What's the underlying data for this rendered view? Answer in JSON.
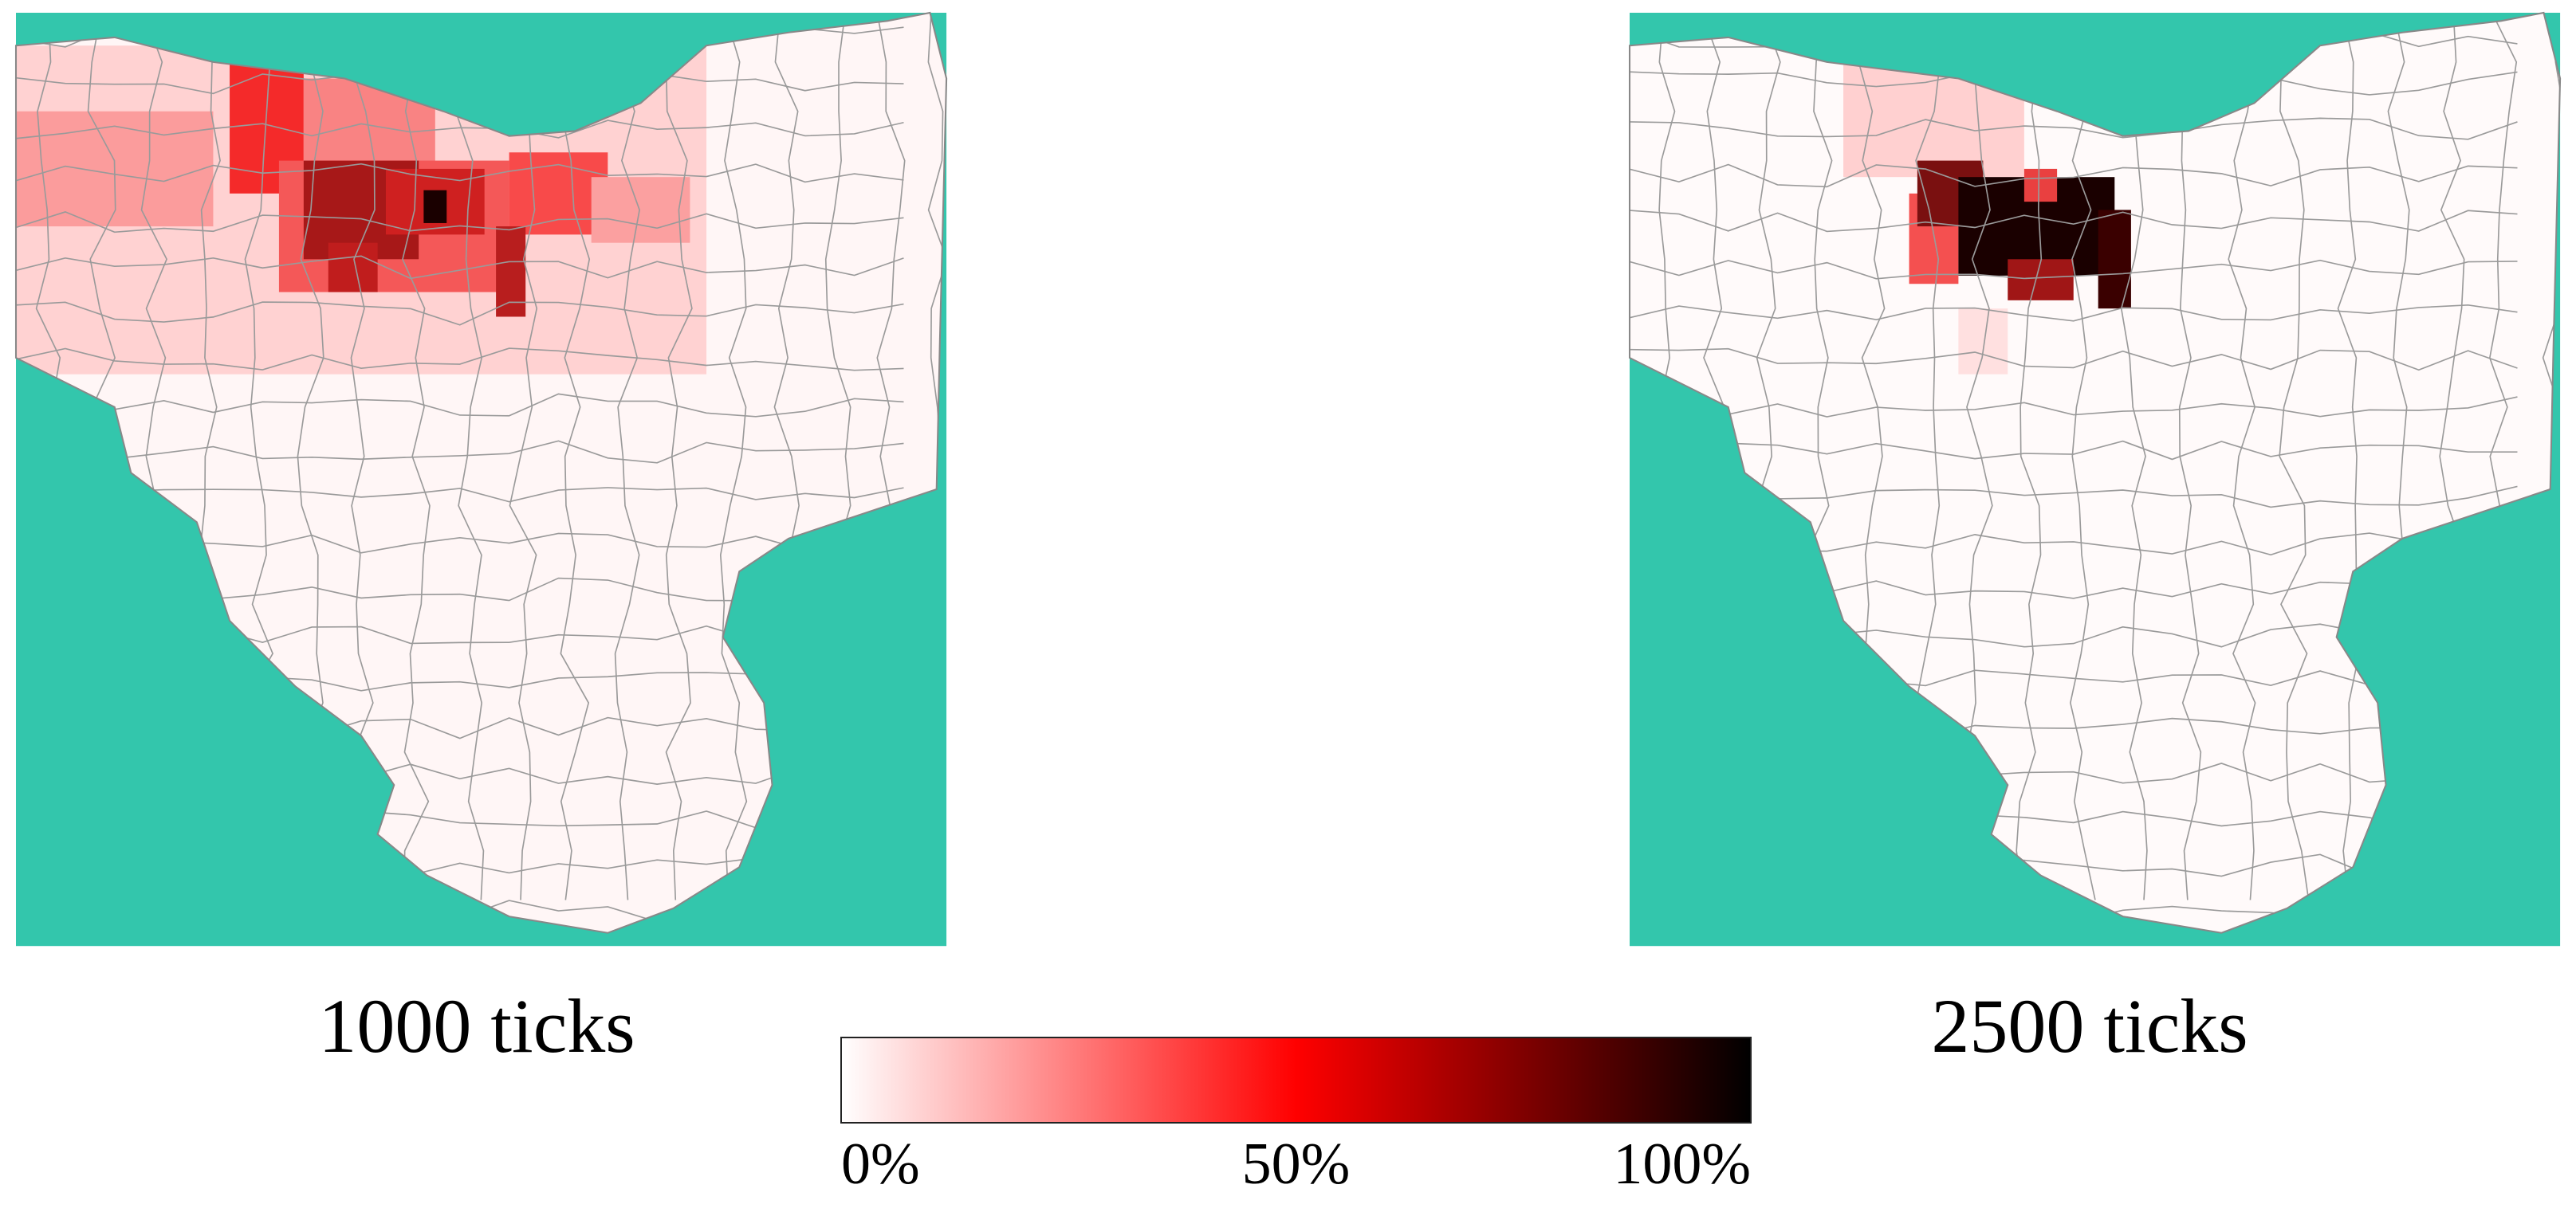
{
  "panels": [
    {
      "title": "1000 ticks"
    },
    {
      "title": "2500 ticks"
    }
  ],
  "colorbar": {
    "ticks": [
      {
        "value": 0,
        "label": "0%"
      },
      {
        "value": 50,
        "label": "50%"
      },
      {
        "value": 100,
        "label": "100%"
      }
    ]
  }
}
